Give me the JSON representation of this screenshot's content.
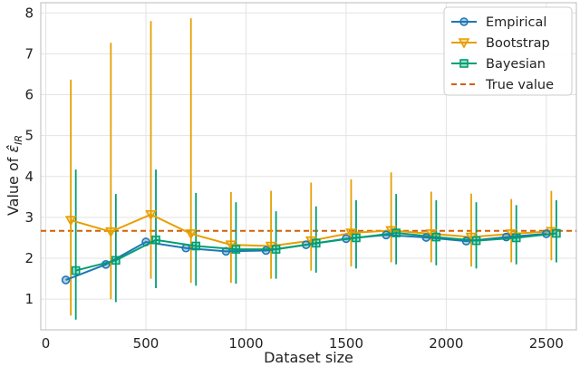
{
  "chart_data": {
    "type": "line",
    "xlabel": "Dataset size",
    "ylabel": "Value of ε̂_IR",
    "xlim": [
      -25,
      2650
    ],
    "ylim": [
      0.25,
      8.25
    ],
    "xticks": [
      0,
      500,
      1000,
      1500,
      2000,
      2500
    ],
    "yticks": [
      1,
      2,
      3,
      4,
      5,
      6,
      7,
      8
    ],
    "grid": true,
    "legend_position": "top-right",
    "colors": {
      "empirical": "#1f77b4",
      "bootstrap": "#e69f00",
      "bayesian": "#009e73",
      "true_value": "#d55e00"
    },
    "series": [
      {
        "name": "Empirical",
        "marker": "circle",
        "x": [
          100,
          300,
          500,
          700,
          900,
          1100,
          1300,
          1500,
          1700,
          1900,
          2100,
          2300,
          2500
        ],
        "y": [
          1.47,
          1.85,
          2.4,
          2.25,
          2.17,
          2.19,
          2.33,
          2.48,
          2.57,
          2.51,
          2.42,
          2.52,
          2.6
        ]
      },
      {
        "name": "Bootstrap",
        "marker": "triangle-down",
        "x": [
          125,
          325,
          525,
          725,
          925,
          1125,
          1325,
          1525,
          1725,
          1925,
          2125,
          2325,
          2525
        ],
        "y": [
          2.93,
          2.65,
          3.07,
          2.6,
          2.33,
          2.3,
          2.43,
          2.62,
          2.68,
          2.6,
          2.52,
          2.6,
          2.66
        ],
        "err_low": [
          0.6,
          1.0,
          1.5,
          1.4,
          1.4,
          1.5,
          1.7,
          1.8,
          1.9,
          1.9,
          1.8,
          1.9,
          1.95
        ],
        "err_high": [
          6.37,
          7.27,
          7.8,
          7.87,
          3.62,
          3.65,
          3.85,
          3.93,
          4.1,
          3.63,
          3.58,
          3.45,
          3.65
        ]
      },
      {
        "name": "Bayesian",
        "marker": "square",
        "x": [
          150,
          350,
          550,
          750,
          950,
          1150,
          1350,
          1550,
          1750,
          1950,
          2150,
          2350,
          2550
        ],
        "y": [
          1.7,
          1.95,
          2.45,
          2.3,
          2.22,
          2.22,
          2.37,
          2.5,
          2.62,
          2.52,
          2.43,
          2.5,
          2.61
        ],
        "err_low": [
          0.5,
          0.93,
          1.27,
          1.33,
          1.38,
          1.5,
          1.65,
          1.75,
          1.85,
          1.83,
          1.75,
          1.85,
          1.9
        ],
        "err_high": [
          4.17,
          3.57,
          4.17,
          3.6,
          3.37,
          3.15,
          3.27,
          3.42,
          3.57,
          3.42,
          3.37,
          3.3,
          3.42
        ]
      },
      {
        "name": "True value",
        "style": "dashed",
        "y": 2.67
      }
    ]
  }
}
